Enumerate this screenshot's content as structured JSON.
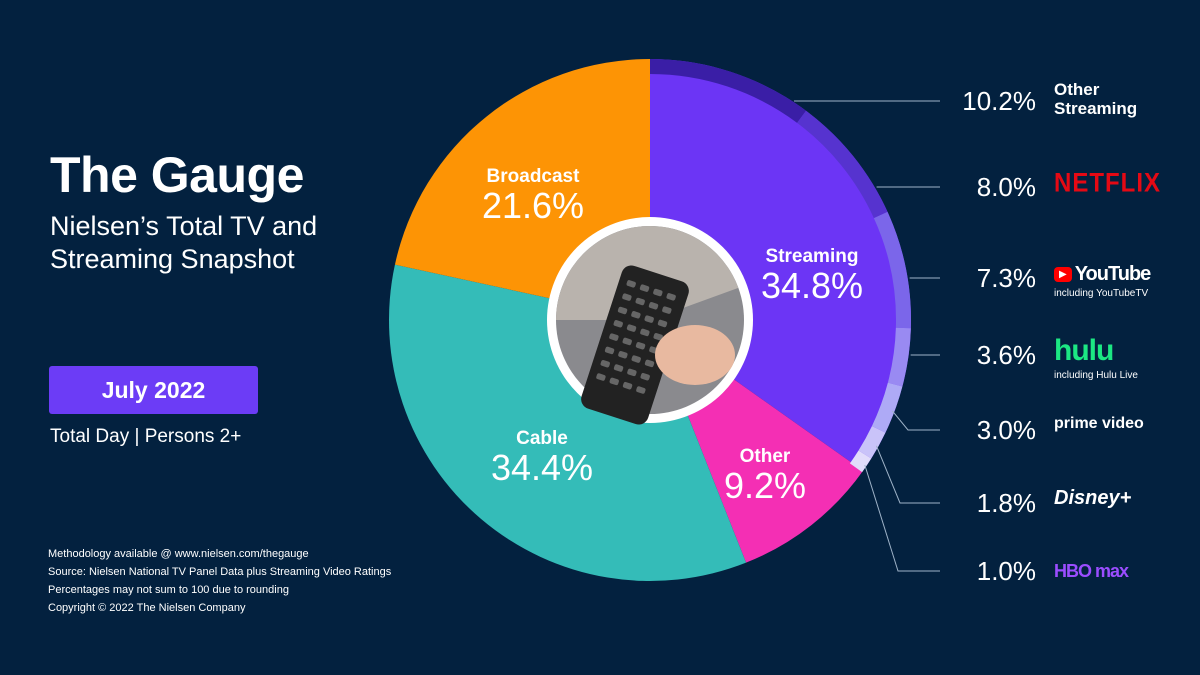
{
  "header": {
    "title": "The Gauge",
    "subtitle": "Nielsen’s Total TV and Streaming Snapshot"
  },
  "period": {
    "month": "July 2022",
    "scope": "Total Day | Persons 2+"
  },
  "notes": [
    "Methodology available @ www.nielsen.com/thegauge",
    "Source: Nielsen National TV Panel Data plus Streaming Video Ratings",
    "Percentages may not sum to 100 due to rounding",
    "Copyright © 2022 The Nielsen Company"
  ],
  "chart_data": {
    "type": "pie",
    "slices": [
      {
        "name": "Streaming",
        "value": 34.8,
        "label": "34.8%",
        "color": "#6c35f5"
      },
      {
        "name": "Other",
        "value": 9.2,
        "label": "9.2%",
        "color": "#f42fb4"
      },
      {
        "name": "Cable",
        "value": 34.4,
        "label": "34.4%",
        "color": "#34bcb8"
      },
      {
        "name": "Broadcast",
        "value": 21.6,
        "label": "21.6%",
        "color": "#fd9405"
      }
    ],
    "streaming_breakdown": [
      {
        "name": "Other Streaming",
        "value": 10.2,
        "label": "10.2%",
        "color": "#3a1ea6"
      },
      {
        "name": "NETFLIX",
        "value": 8.0,
        "label": "8.0%",
        "color": "#5633cf",
        "brand_color": "#e50914"
      },
      {
        "name": "YouTube",
        "sub": "including YouTubeTV",
        "value": 7.3,
        "label": "7.3%",
        "color": "#7b66ea",
        "brand_color": "#ff0000"
      },
      {
        "name": "hulu",
        "sub": "including Hulu Live",
        "value": 3.6,
        "label": "3.6%",
        "color": "#998af2",
        "brand_color": "#1ce783"
      },
      {
        "name": "prime video",
        "value": 3.0,
        "label": "3.0%",
        "color": "#aeaaf6",
        "brand_color": "#ffffff"
      },
      {
        "name": "Disney+",
        "value": 1.8,
        "label": "1.8%",
        "color": "#c9c3f9",
        "brand_color": "#ffffff"
      },
      {
        "name": "HBO max",
        "value": 1.0,
        "label": "1.0%",
        "color": "#e1dcfb",
        "brand_color": "#9b4dff"
      }
    ]
  }
}
